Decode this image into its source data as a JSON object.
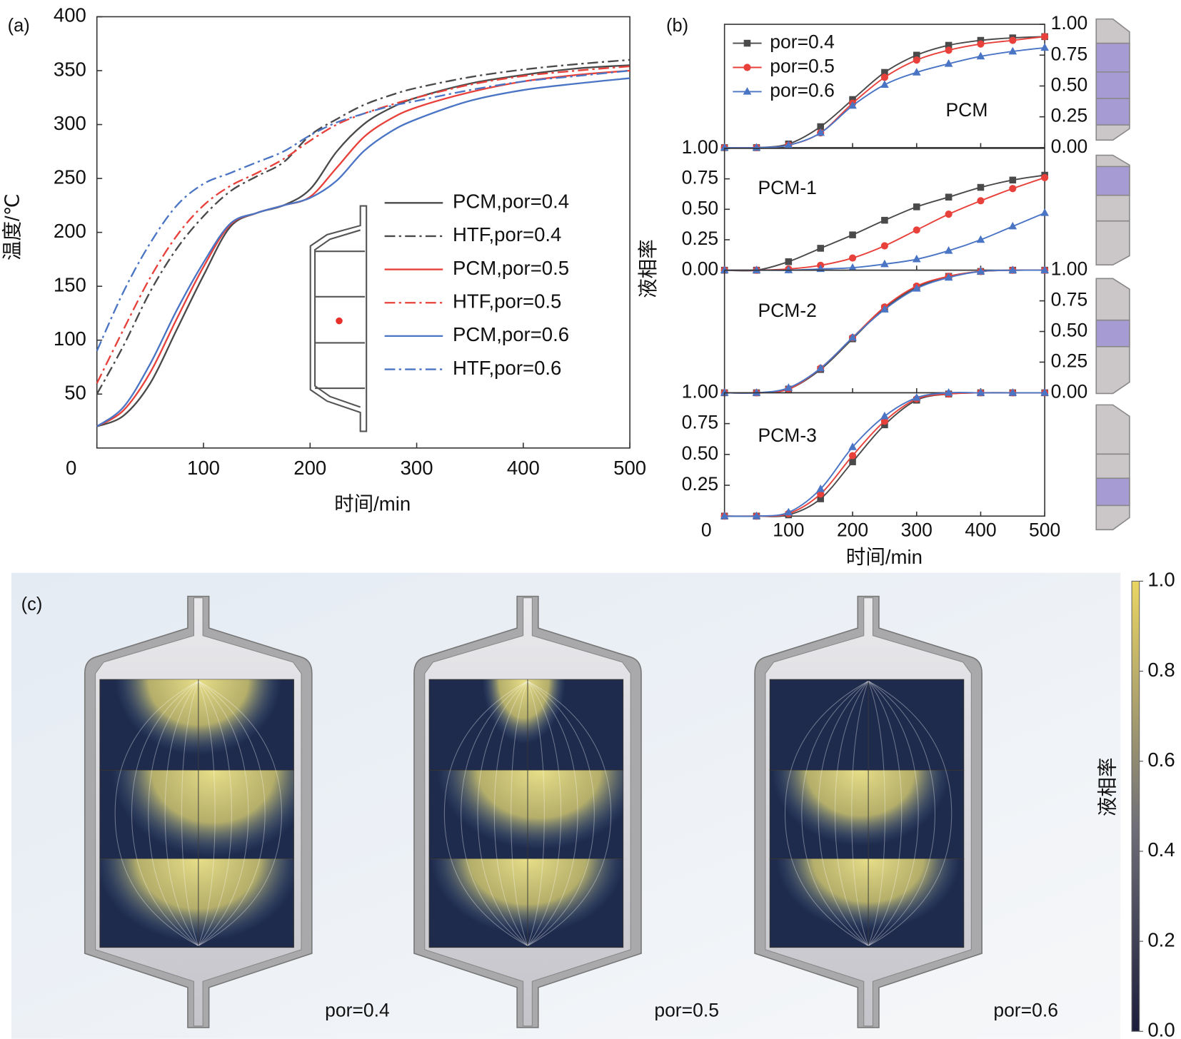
{
  "chart_data": [
    {
      "type": "line",
      "panel_label": "(a)",
      "xlabel": "时间/min",
      "ylabel": "温度/℃",
      "xlim": [
        0,
        500
      ],
      "xticks": [
        0,
        100,
        200,
        300,
        400,
        500
      ],
      "ylim": [
        0,
        400
      ],
      "yticks": [
        50,
        100,
        150,
        200,
        250,
        300,
        350,
        400
      ],
      "x": [
        0,
        25,
        50,
        75,
        100,
        125,
        150,
        175,
        200,
        225,
        250,
        275,
        300,
        350,
        400,
        450,
        500
      ],
      "series": [
        {
          "name": "PCM,por=0.4",
          "color": "#4a4a4a",
          "dash": "solid",
          "values": [
            20,
            30,
            60,
            110,
            160,
            205,
            218,
            225,
            240,
            275,
            300,
            315,
            325,
            338,
            346,
            352,
            355
          ]
        },
        {
          "name": "HTF,por=0.4",
          "color": "#4a4a4a",
          "dash": "dashdot",
          "values": [
            50,
            95,
            145,
            185,
            215,
            238,
            252,
            265,
            290,
            305,
            318,
            327,
            334,
            344,
            351,
            356,
            360
          ]
        },
        {
          "name": "PCM,por=0.5",
          "color": "#e8403a",
          "dash": "solid",
          "values": [
            20,
            35,
            70,
            120,
            168,
            207,
            218,
            225,
            233,
            260,
            288,
            305,
            316,
            330,
            340,
            346,
            350
          ]
        },
        {
          "name": "HTF,por=0.5",
          "color": "#e8403a",
          "dash": "dashdot",
          "values": [
            60,
            110,
            158,
            197,
            225,
            243,
            255,
            268,
            285,
            300,
            310,
            318,
            325,
            337,
            345,
            350,
            354
          ]
        },
        {
          "name": "PCM,por=0.6",
          "color": "#4a74c4",
          "dash": "solid",
          "values": [
            20,
            38,
            78,
            128,
            172,
            208,
            218,
            225,
            232,
            248,
            275,
            293,
            305,
            322,
            332,
            338,
            343
          ]
        },
        {
          "name": "HTF,por=0.6",
          "color": "#4a74c4",
          "dash": "dashdot",
          "values": [
            90,
            145,
            190,
            225,
            245,
            255,
            265,
            275,
            290,
            302,
            310,
            317,
            322,
            332,
            340,
            345,
            350
          ]
        }
      ]
    },
    {
      "type": "line",
      "panel_label": "(b)",
      "xlabel": "时间/min",
      "ylabel": "液相率",
      "xlim": [
        0,
        500
      ],
      "xticks": [
        0,
        100,
        200,
        300,
        400,
        500
      ],
      "x": [
        0,
        50,
        100,
        150,
        200,
        250,
        300,
        350,
        400,
        450,
        500
      ],
      "series": [
        {
          "name": "por=0.4",
          "color": "#4a4a4a",
          "marker": "square"
        },
        {
          "name": "por=0.5",
          "color": "#e8403a",
          "marker": "circle"
        },
        {
          "name": "por=0.6",
          "color": "#4a74c4",
          "marker": "triangle"
        }
      ],
      "subplots": [
        {
          "title": "PCM",
          "yaxis_side": "right",
          "ylim": [
            0,
            1
          ],
          "yticks": [
            {
              "value": 0,
              "label": "0.00"
            },
            0.25,
            {
              "value": 0.5,
              "label": "0.50"
            },
            0.75,
            {
              "value": 1,
              "label": "1.00"
            }
          ],
          "values": [
            [
              0,
              0,
              0.03,
              0.17,
              0.39,
              0.61,
              0.75,
              0.83,
              0.87,
              0.89,
              0.9
            ],
            [
              0,
              0,
              0.02,
              0.12,
              0.36,
              0.57,
              0.71,
              0.79,
              0.84,
              0.87,
              0.9
            ],
            [
              0,
              0,
              0.02,
              0.12,
              0.34,
              0.51,
              0.61,
              0.68,
              0.74,
              0.78,
              0.81
            ]
          ]
        },
        {
          "title": "PCM-1",
          "yaxis_side": "left",
          "ylim": [
            0,
            1
          ],
          "yticks": [
            {
              "value": 0,
              "label": "0.00"
            },
            0.25,
            {
              "value": 0.5,
              "label": "0.50"
            },
            0.75,
            {
              "value": 1,
              "label": "1.00"
            }
          ],
          "values": [
            [
              0,
              0,
              0.07,
              0.18,
              0.29,
              0.41,
              0.52,
              0.6,
              0.68,
              0.74,
              0.78
            ],
            [
              0,
              0,
              0.01,
              0.04,
              0.1,
              0.2,
              0.33,
              0.46,
              0.57,
              0.67,
              0.76
            ],
            [
              0,
              0,
              0,
              0.01,
              0.02,
              0.05,
              0.09,
              0.16,
              0.25,
              0.36,
              0.47
            ]
          ]
        },
        {
          "title": "PCM-2",
          "yaxis_side": "right",
          "ylim": [
            0,
            1
          ],
          "yticks": [
            {
              "value": 0,
              "label": "0.00"
            },
            0.25,
            {
              "value": 0.5,
              "label": "0.50"
            },
            0.75,
            {
              "value": 1,
              "label": "1.00"
            }
          ],
          "values": [
            [
              0,
              0,
              0.03,
              0.19,
              0.44,
              0.69,
              0.86,
              0.95,
              0.99,
              1,
              1
            ],
            [
              0,
              0,
              0.03,
              0.2,
              0.45,
              0.7,
              0.87,
              0.95,
              0.99,
              1,
              1
            ],
            [
              0,
              0,
              0.04,
              0.2,
              0.45,
              0.68,
              0.85,
              0.94,
              0.99,
              1,
              1
            ]
          ]
        },
        {
          "title": "PCM-3",
          "yaxis_side": "left",
          "ylim": [
            0,
            1
          ],
          "yticks": [
            0.25,
            {
              "value": 0.5,
              "label": "0.50"
            },
            0.75,
            {
              "value": 1,
              "label": "1.00"
            }
          ],
          "values": [
            [
              0,
              0,
              0.01,
              0.14,
              0.44,
              0.74,
              0.94,
              0.99,
              1,
              1,
              1
            ],
            [
              0,
              0,
              0.02,
              0.18,
              0.49,
              0.77,
              0.95,
              0.99,
              1,
              1,
              1
            ],
            [
              0,
              0,
              0.03,
              0.22,
              0.56,
              0.81,
              0.96,
              1,
              1,
              1,
              1
            ]
          ]
        }
      ]
    },
    {
      "type": "colorbar",
      "panel_label": "(c)",
      "label": "液相率",
      "ylim": [
        0,
        1
      ],
      "yticks": [
        {
          "value": 0,
          "label": "0.0"
        },
        0.2,
        0.4,
        0.6,
        0.8,
        {
          "value": 1,
          "label": "1.0"
        }
      ],
      "captions": [
        "por=0.4",
        "por=0.5",
        "por=0.6"
      ]
    }
  ]
}
